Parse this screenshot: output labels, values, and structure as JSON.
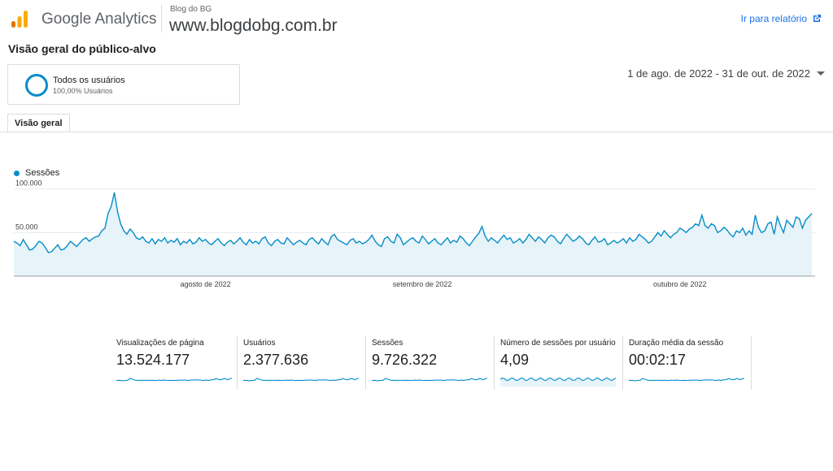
{
  "app": {
    "brand": "Google Analytics"
  },
  "property": {
    "small": "Blog do BG",
    "main": "www.blogdobg.com.br"
  },
  "header": {
    "report_link": "Ir para relatório"
  },
  "page": {
    "title": "Visão geral do público-alvo"
  },
  "segment": {
    "name": "Todos os usuários",
    "sub": "100,00% Usuários"
  },
  "date_range": "1 de ago. de 2022 - 31 de out. de 2022",
  "tabs": [
    {
      "label": "Visão geral"
    }
  ],
  "colors": {
    "accent": "#058dc7",
    "fill": "#e6f3f8",
    "link": "#1a73e8",
    "logo": [
      "#f9ab00",
      "#e37400"
    ]
  },
  "icons": {
    "logo": "analytics-logo-icon",
    "external": "open-external-icon",
    "caret": "caret-down-icon",
    "segment": "segment-ring-icon"
  },
  "chart_data": {
    "type": "area",
    "series": [
      {
        "name": "Sessões",
        "values": [
          40000,
          38000,
          35000,
          42000,
          36000,
          30000,
          31000,
          35000,
          40000,
          38000,
          33000,
          27000,
          28000,
          32000,
          36000,
          30000,
          31000,
          35000,
          40000,
          37000,
          34000,
          38000,
          42000,
          44000,
          40000,
          43000,
          45000,
          46000,
          52000,
          55000,
          72000,
          80000,
          96000,
          74000,
          60000,
          52000,
          48000,
          54000,
          50000,
          44000,
          42000,
          45000,
          40000,
          38000,
          43000,
          37000,
          42000,
          40000,
          44000,
          38000,
          41000,
          39000,
          43000,
          36000,
          40000,
          38000,
          42000,
          37000,
          39000,
          44000,
          40000,
          42000,
          38000,
          36000,
          40000,
          43000,
          38000,
          35000,
          39000,
          41000,
          37000,
          40000,
          44000,
          39000,
          36000,
          42000,
          38000,
          40000,
          37000,
          43000,
          45000,
          38000,
          35000,
          40000,
          42000,
          38000,
          37000,
          44000,
          40000,
          36000,
          39000,
          41000,
          38000,
          36000,
          42000,
          44000,
          40000,
          37000,
          43000,
          39000,
          36000,
          45000,
          48000,
          42000,
          40000,
          38000,
          36000,
          41000,
          43000,
          38000,
          40000,
          37000,
          39000,
          42000,
          47000,
          40000,
          36000,
          34000,
          43000,
          45000,
          40000,
          38000,
          48000,
          44000,
          36000,
          39000,
          42000,
          44000,
          40000,
          38000,
          46000,
          42000,
          37000,
          40000,
          43000,
          38000,
          36000,
          40000,
          44000,
          38000,
          41000,
          39000,
          46000,
          43000,
          38000,
          35000,
          40000,
          45000,
          49000,
          57000,
          46000,
          40000,
          44000,
          41000,
          38000,
          43000,
          47000,
          42000,
          44000,
          38000,
          40000,
          43000,
          38000,
          42000,
          48000,
          44000,
          40000,
          45000,
          42000,
          38000,
          44000,
          47000,
          45000,
          40000,
          37000,
          43000,
          48000,
          44000,
          40000,
          42000,
          46000,
          43000,
          38000,
          36000,
          41000,
          45000,
          39000,
          40000,
          43000,
          36000,
          38000,
          41000,
          38000,
          40000,
          43000,
          38000,
          44000,
          40000,
          42000,
          48000,
          45000,
          42000,
          38000,
          40000,
          45000,
          50000,
          46000,
          52000,
          48000,
          44000,
          48000,
          50000,
          55000,
          53000,
          50000,
          54000,
          56000,
          60000,
          58000,
          70000,
          58000,
          55000,
          60000,
          58000,
          50000,
          52000,
          56000,
          53000,
          48000,
          45000,
          52000,
          50000,
          55000,
          47000,
          52000,
          48000,
          70000,
          56000,
          50000,
          52000,
          60000,
          62000,
          48000,
          68000,
          58000,
          50000,
          64000,
          60000,
          56000,
          68000,
          66000,
          55000,
          64000,
          68000,
          72000
        ]
      }
    ],
    "x_ticks": [
      "agosto de 2022",
      "setembro de 2022",
      "outubro de 2022"
    ],
    "y_ticks": [
      "100.000",
      "50.000"
    ],
    "y_tick_values": [
      100000,
      50000
    ],
    "ylim": [
      0,
      110000
    ],
    "grid": true,
    "legend": "top-left"
  },
  "metrics": [
    {
      "label": "Visualizações de página",
      "value": "13.524.177"
    },
    {
      "label": "Usuários",
      "value": "2.377.636"
    },
    {
      "label": "Sessões",
      "value": "9.726.322"
    },
    {
      "label": "Número de sessões por usuário",
      "value": "4,09"
    },
    {
      "label": "Duração média da sessão",
      "value": "00:02:17"
    }
  ]
}
